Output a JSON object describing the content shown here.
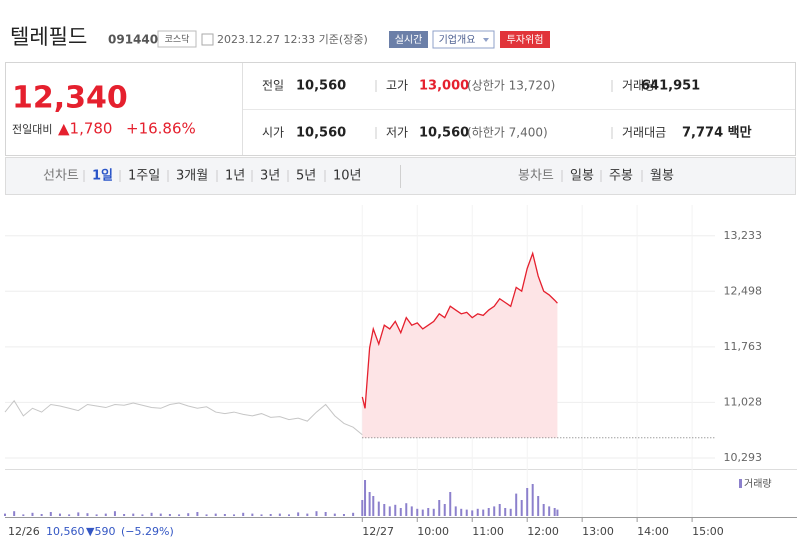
{
  "header": {
    "title": "텔레필드",
    "code": "091440",
    "market": "코스닥",
    "timestamp": "2023.12.27 12:33 기준(장중)",
    "buttons": [
      "실시간",
      "기업개요",
      "투자위험"
    ]
  },
  "summary": {
    "price": "12,340",
    "change_label": "전일대비",
    "change": "▲1,780",
    "rate": "+16.86%",
    "items": [
      {
        "label": "전일",
        "value": "10,560"
      },
      {
        "label": "고가",
        "value": "13,000",
        "note": "(상한가 13,720)"
      },
      {
        "label": "거래량",
        "value": "641,951"
      },
      {
        "label": "시가",
        "value": "10,560"
      },
      {
        "label": "저가",
        "value": "10,560",
        "note": "(하한가 7,400)"
      },
      {
        "label": "거래대금",
        "value": "7,774 백만"
      }
    ]
  },
  "tabs": {
    "line_label": "선차트",
    "line": [
      "1일",
      "1주일",
      "3개월",
      "1년",
      "3년",
      "5년",
      "10년"
    ],
    "candle_label": "봉차트",
    "candle": [
      "일봉",
      "주봉",
      "월봉"
    ]
  },
  "chart_data": {
    "type": "line",
    "xlim": [
      0,
      775
    ],
    "ylim": [
      10160,
      13640
    ],
    "yticks": [
      {
        "value": 13233,
        "label": "13,233"
      },
      {
        "value": 12498,
        "label": "12,498"
      },
      {
        "value": 11763,
        "label": "11,763"
      },
      {
        "value": 11028,
        "label": "11,028"
      },
      {
        "value": 10293,
        "label": "10,293"
      }
    ],
    "xticks": [
      {
        "value": 390,
        "label": "12/27"
      },
      {
        "value": 450,
        "label": "10:00"
      },
      {
        "value": 510,
        "label": "11:00"
      },
      {
        "value": 570,
        "label": "12:00"
      },
      {
        "value": 630,
        "label": "13:00"
      },
      {
        "value": 690,
        "label": "14:00"
      },
      {
        "value": 750,
        "label": "15:00"
      }
    ],
    "grid": true,
    "base_value": 10560,
    "prev_day": {
      "date": "12/26",
      "close": "10,560",
      "change": "▼590",
      "rate": "(−5.29%)"
    },
    "series": [
      {
        "color": "#c6c6c6",
        "x": [
          0,
          10,
          20,
          30,
          40,
          50,
          60,
          70,
          80,
          90,
          100,
          110,
          120,
          130,
          140,
          150,
          160,
          170,
          180,
          190,
          200,
          210,
          220,
          230,
          240,
          250,
          260,
          270,
          280,
          290,
          300,
          310,
          320,
          330,
          340,
          350,
          360,
          370,
          380,
          390
        ],
        "values": [
          10900,
          11050,
          10850,
          10950,
          10900,
          11000,
          10980,
          10950,
          10920,
          11000,
          10980,
          10960,
          11000,
          10990,
          11020,
          10990,
          10960,
          10950,
          11000,
          11020,
          10980,
          10950,
          10970,
          10900,
          10880,
          10900,
          10870,
          10850,
          10880,
          10830,
          10840,
          10800,
          10820,
          10780,
          10900,
          11000,
          10850,
          10750,
          10700,
          10600
        ]
      },
      {
        "color": "#e5202e",
        "fill": "#fde4e6",
        "x": [
          390,
          393,
          398,
          402,
          408,
          414,
          420,
          426,
          432,
          438,
          444,
          450,
          456,
          462,
          468,
          474,
          480,
          486,
          492,
          498,
          504,
          510,
          516,
          522,
          528,
          534,
          540,
          546,
          552,
          558,
          564,
          570,
          576,
          582,
          588,
          594,
          600,
          603
        ],
        "values": [
          11100,
          10950,
          11750,
          12000,
          11800,
          12050,
          12000,
          12100,
          11950,
          12150,
          12050,
          12080,
          12000,
          12050,
          12100,
          12200,
          12150,
          12300,
          12250,
          12200,
          12220,
          12150,
          12200,
          12180,
          12250,
          12300,
          12400,
          12350,
          12300,
          12550,
          12500,
          12800,
          13000,
          12700,
          12500,
          12450,
          12380,
          12340
        ]
      }
    ],
    "volume": {
      "name": "거래량",
      "color": "#8c80cc",
      "ylim": [
        0,
        50000
      ],
      "x": [
        0,
        10,
        20,
        30,
        40,
        50,
        60,
        70,
        80,
        90,
        100,
        110,
        120,
        130,
        140,
        150,
        160,
        170,
        180,
        190,
        200,
        210,
        220,
        230,
        240,
        250,
        260,
        270,
        280,
        290,
        300,
        310,
        320,
        330,
        340,
        350,
        360,
        370,
        380,
        390,
        393,
        398,
        402,
        408,
        414,
        420,
        426,
        432,
        438,
        444,
        450,
        456,
        462,
        468,
        474,
        480,
        486,
        492,
        498,
        504,
        510,
        516,
        522,
        528,
        534,
        540,
        546,
        552,
        558,
        564,
        570,
        576,
        582,
        588,
        594,
        600,
        603
      ],
      "values": [
        3000,
        6000,
        2000,
        4000,
        2500,
        5000,
        3000,
        2000,
        4500,
        3500,
        2000,
        3000,
        6000,
        2500,
        3000,
        2000,
        4000,
        3000,
        2500,
        2000,
        3500,
        5000,
        2000,
        3000,
        2500,
        2000,
        4000,
        3000,
        2000,
        2500,
        3000,
        2000,
        4500,
        3000,
        6000,
        5000,
        3000,
        2500,
        4000,
        20000,
        45000,
        30000,
        25000,
        18000,
        15000,
        12000,
        14000,
        10000,
        16000,
        12000,
        9000,
        8000,
        10000,
        9000,
        20000,
        15000,
        30000,
        12000,
        9000,
        8000,
        7000,
        9000,
        8000,
        10000,
        12000,
        15000,
        10000,
        9000,
        28000,
        20000,
        35000,
        40000,
        25000,
        15000,
        12000,
        10000,
        8000
      ]
    }
  }
}
